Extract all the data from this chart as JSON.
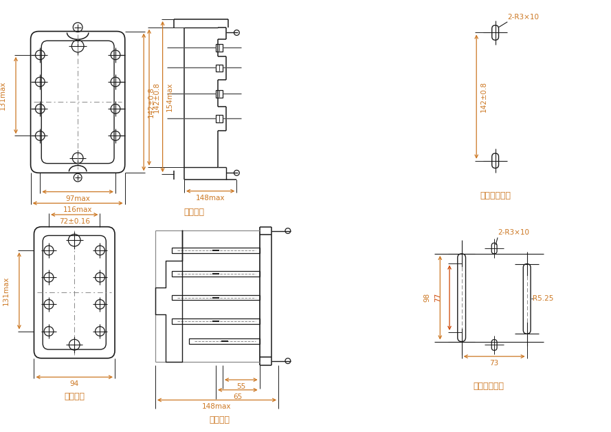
{
  "bg_color": "#ffffff",
  "lc": "#1a1a1a",
  "dc": "#cc7722",
  "dc2": "#cc4400",
  "clc": "#888888",
  "fig_width": 8.89,
  "fig_height": 6.28,
  "labels": {
    "front_view": "板前接线",
    "front_hole": "板前接线开孔",
    "back_view": "板后接线",
    "back_hole": "板后接线开孔"
  },
  "dims": {
    "front_w1": "97max",
    "front_w2": "116max",
    "front_h1": "131max",
    "front_h2": "142±0.8",
    "side_h1": "154max",
    "side_d1": "148max",
    "hole_h": "142±0.8",
    "hole_label": "2-R3×10",
    "back_w1": "94",
    "back_w2": "72±0.16",
    "back_h1": "131max",
    "back_d1": "148max",
    "back_d2": "65",
    "back_d3": "55",
    "bh_h1": "98",
    "bh_h2": "77",
    "bh_w1": "73",
    "bh_r": "R5.25",
    "bh_label": "2-R3×10"
  }
}
